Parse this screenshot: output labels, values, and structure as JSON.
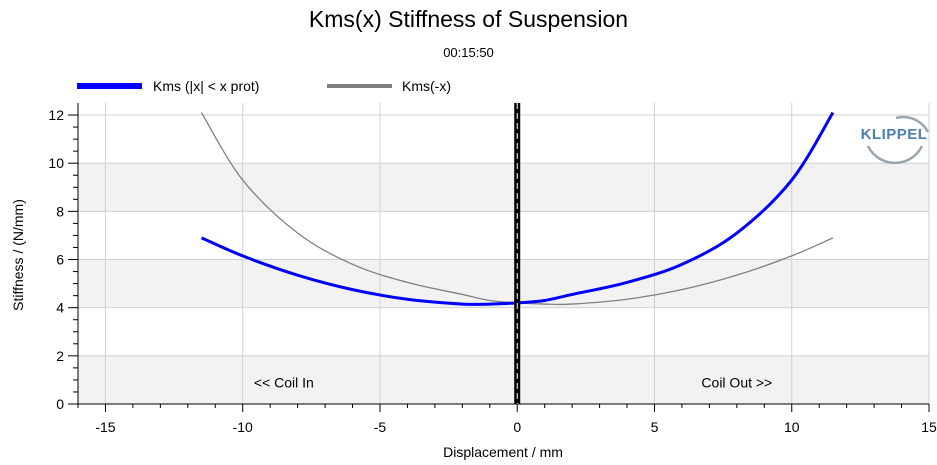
{
  "chart_data": {
    "type": "line",
    "title": "Kms(x) Stiffness of Suspension",
    "subtitle": "00:15:50",
    "xlabel": "Displacement / mm",
    "ylabel": "Stiffness / (N/mm)",
    "xlim": [
      -16,
      15
    ],
    "ylim": [
      0,
      12.5
    ],
    "xticks": [
      -15,
      -10,
      -5,
      0,
      5,
      10,
      15
    ],
    "yticks": [
      0,
      2,
      4,
      6,
      8,
      10,
      12
    ],
    "grid": true,
    "legend_position": "top-left",
    "series": [
      {
        "name": "Kms (|x| < x prot)",
        "color": "#0000ff",
        "x": [
          -11.5,
          -10,
          -8,
          -6,
          -4,
          -2,
          -1,
          0,
          1,
          2,
          4,
          6,
          8,
          10,
          11.5
        ],
        "y": [
          6.9,
          6.15,
          5.35,
          4.75,
          4.35,
          4.15,
          4.15,
          4.2,
          4.3,
          4.55,
          5.05,
          5.8,
          7.1,
          9.3,
          12.1
        ]
      },
      {
        "name": "Kms(-x)",
        "color": "#808080",
        "x": [
          -11.5,
          -10,
          -8,
          -6,
          -4,
          -2,
          -1,
          0,
          1,
          2,
          4,
          6,
          8,
          10,
          11.5
        ],
        "y": [
          12.1,
          9.3,
          7.1,
          5.8,
          5.05,
          4.55,
          4.3,
          4.2,
          4.15,
          4.15,
          4.35,
          4.75,
          5.35,
          6.15,
          6.9
        ]
      }
    ],
    "vertical_marker": {
      "x": 0,
      "color": "#000000"
    },
    "annotations": [
      {
        "text": "<< Coil In",
        "x": -8.5,
        "y": 0.9
      },
      {
        "text": "Coil Out >>",
        "x": 8,
        "y": 0.9
      }
    ],
    "shaded_bands": [
      [
        0,
        2
      ],
      [
        4,
        6
      ],
      [
        8,
        10
      ]
    ],
    "logo": "KLIPPEL"
  }
}
